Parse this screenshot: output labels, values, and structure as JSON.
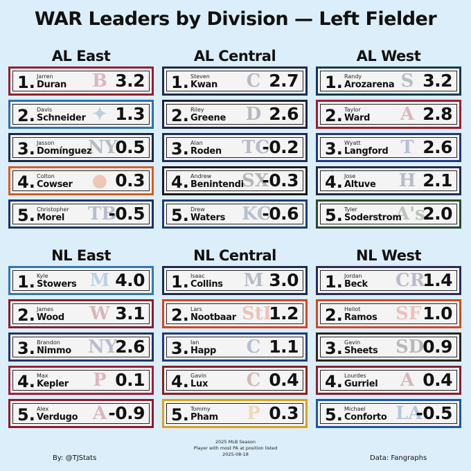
{
  "title": "WAR Leaders by Division — Left Fielder",
  "divisions": [
    {
      "name": "AL East",
      "players": [
        {
          "rank": "1.",
          "first": "Jarren",
          "last": "Duran",
          "war": "3.2",
          "color": "#9a1b2e",
          "logo": "B",
          "logo_icon": "red-sox-logo-icon"
        },
        {
          "rank": "2.",
          "first": "Davis",
          "last": "Schneider",
          "war": "1.3",
          "color": "#2f6fb0",
          "logo": "✦",
          "logo_icon": "blue-jays-logo-icon"
        },
        {
          "rank": "3.",
          "first": "Jasson",
          "last": "Domínguez",
          "war": "0.5",
          "color": "#1d2a44",
          "logo": "NY",
          "logo_icon": "yankees-logo-icon"
        },
        {
          "rank": "4.",
          "first": "Colton",
          "last": "Cowser",
          "war": "0.3",
          "color": "#dd5a1e",
          "logo": "●",
          "logo_icon": "orioles-logo-icon"
        },
        {
          "rank": "5.",
          "first": "Christopher",
          "last": "Morel",
          "war": "-0.5",
          "color": "#1e3268",
          "logo": "TB",
          "logo_icon": "rays-logo-icon"
        }
      ]
    },
    {
      "name": "AL Central",
      "players": [
        {
          "rank": "1.",
          "first": "Steven",
          "last": "Kwan",
          "war": "2.7",
          "color": "#1e2a4a",
          "logo": "C",
          "logo_icon": "guardians-logo-icon"
        },
        {
          "rank": "2.",
          "first": "Riley",
          "last": "Greene",
          "war": "2.6",
          "color": "#1b2440",
          "logo": "D",
          "logo_icon": "tigers-logo-icon"
        },
        {
          "rank": "3.",
          "first": "Alan",
          "last": "Roden",
          "war": "-0.2",
          "color": "#1f2d50",
          "logo": "TC",
          "logo_icon": "twins-logo-icon"
        },
        {
          "rank": "4.",
          "first": "Andrew",
          "last": "Benintendi",
          "war": "-0.3",
          "color": "#1a1a1a",
          "logo": "SX",
          "logo_icon": "white-sox-logo-icon"
        },
        {
          "rank": "5.",
          "first": "Drew",
          "last": "Waters",
          "war": "-0.6",
          "color": "#1d3b78",
          "logo": "KC",
          "logo_icon": "royals-logo-icon"
        }
      ]
    },
    {
      "name": "AL West",
      "players": [
        {
          "rank": "1.",
          "first": "Randy",
          "last": "Arozarena",
          "war": "3.2",
          "color": "#133a52",
          "logo": "S",
          "logo_icon": "mariners-logo-icon"
        },
        {
          "rank": "2.",
          "first": "Taylor",
          "last": "Ward",
          "war": "2.8",
          "color": "#a21b2f",
          "logo": "A",
          "logo_icon": "angels-logo-icon"
        },
        {
          "rank": "3.",
          "first": "Wyatt",
          "last": "Langford",
          "war": "2.6",
          "color": "#1f3a7a",
          "logo": "T",
          "logo_icon": "rangers-logo-icon"
        },
        {
          "rank": "4.",
          "first": "Jose",
          "last": "Altuve",
          "war": "2.1",
          "color": "#1f2b4d",
          "logo": "H",
          "logo_icon": "astros-logo-icon"
        },
        {
          "rank": "5.",
          "first": "Tyler",
          "last": "Soderstrom",
          "war": "2.0",
          "color": "#2c4a2c",
          "logo": "A's",
          "logo_icon": "athletics-logo-icon"
        }
      ]
    },
    {
      "name": "NL East",
      "players": [
        {
          "rank": "1.",
          "first": "Kyle",
          "last": "Stowers",
          "war": "4.0",
          "color": "#2e79b6",
          "logo": "M",
          "logo_icon": "marlins-logo-icon"
        },
        {
          "rank": "2.",
          "first": "James",
          "last": "Wood",
          "war": "3.1",
          "color": "#8e1c2c",
          "logo": "W",
          "logo_icon": "nationals-logo-icon"
        },
        {
          "rank": "3.",
          "first": "Brandon",
          "last": "Nimmo",
          "war": "2.6",
          "color": "#23336b",
          "logo": "NY",
          "logo_icon": "mets-logo-icon"
        },
        {
          "rank": "4.",
          "first": "Max",
          "last": "Kepler",
          "war": "0.1",
          "color": "#a31c3a",
          "logo": "P",
          "logo_icon": "phillies-logo-icon"
        },
        {
          "rank": "5.",
          "first": "Alex",
          "last": "Verdugo",
          "war": "-0.9",
          "color": "#8c1b2d",
          "logo": "A",
          "logo_icon": "braves-logo-icon"
        }
      ]
    },
    {
      "name": "NL Central",
      "players": [
        {
          "rank": "1.",
          "first": "Isaac",
          "last": "Collins",
          "war": "3.0",
          "color": "#1c2c4c",
          "logo": "M",
          "logo_icon": "brewers-logo-icon"
        },
        {
          "rank": "2.",
          "first": "Lars",
          "last": "Nootbaar",
          "war": "1.2",
          "color": "#d8431e",
          "logo": "StL",
          "logo_icon": "cardinals-logo-icon"
        },
        {
          "rank": "3.",
          "first": "Ian",
          "last": "Happ",
          "war": "1.1",
          "color": "#1e3a7a",
          "logo": "C",
          "logo_icon": "cubs-logo-icon"
        },
        {
          "rank": "4.",
          "first": "Gavin",
          "last": "Lux",
          "war": "0.4",
          "color": "#8e1c1c",
          "logo": "C",
          "logo_icon": "reds-logo-icon"
        },
        {
          "rank": "5.",
          "first": "Tommy",
          "last": "Pham",
          "war": "0.3",
          "color": "#d8a21e",
          "logo": "P",
          "logo_icon": "pirates-logo-icon"
        }
      ]
    },
    {
      "name": "NL West",
      "players": [
        {
          "rank": "1.",
          "first": "Jordan",
          "last": "Beck",
          "war": "1.4",
          "color": "#2f2a56",
          "logo": "CR",
          "logo_icon": "rockies-logo-icon"
        },
        {
          "rank": "2.",
          "first": "Heliot",
          "last": "Ramos",
          "war": "1.0",
          "color": "#d8451e",
          "logo": "SF",
          "logo_icon": "giants-logo-icon"
        },
        {
          "rank": "3.",
          "first": "Gavin",
          "last": "Sheets",
          "war": "0.9",
          "color": "#2b2420",
          "logo": "SD",
          "logo_icon": "padres-logo-icon"
        },
        {
          "rank": "4.",
          "first": "Lourdes",
          "last": "Gurriel",
          "war": "0.4",
          "color": "#8e1c2c",
          "logo": "A",
          "logo_icon": "diamondbacks-logo-icon"
        },
        {
          "rank": "5.",
          "first": "Michael",
          "last": "Conforto",
          "war": "-0.5",
          "color": "#1e56a4",
          "logo": "LA",
          "logo_icon": "dodgers-logo-icon"
        }
      ]
    }
  ],
  "footer": {
    "credit": "By: @TJStats",
    "source": "Data: Fangraphs",
    "season": "2025 MLB Season",
    "note": "Player with most PA at position listed",
    "date": "2025-08-18"
  }
}
